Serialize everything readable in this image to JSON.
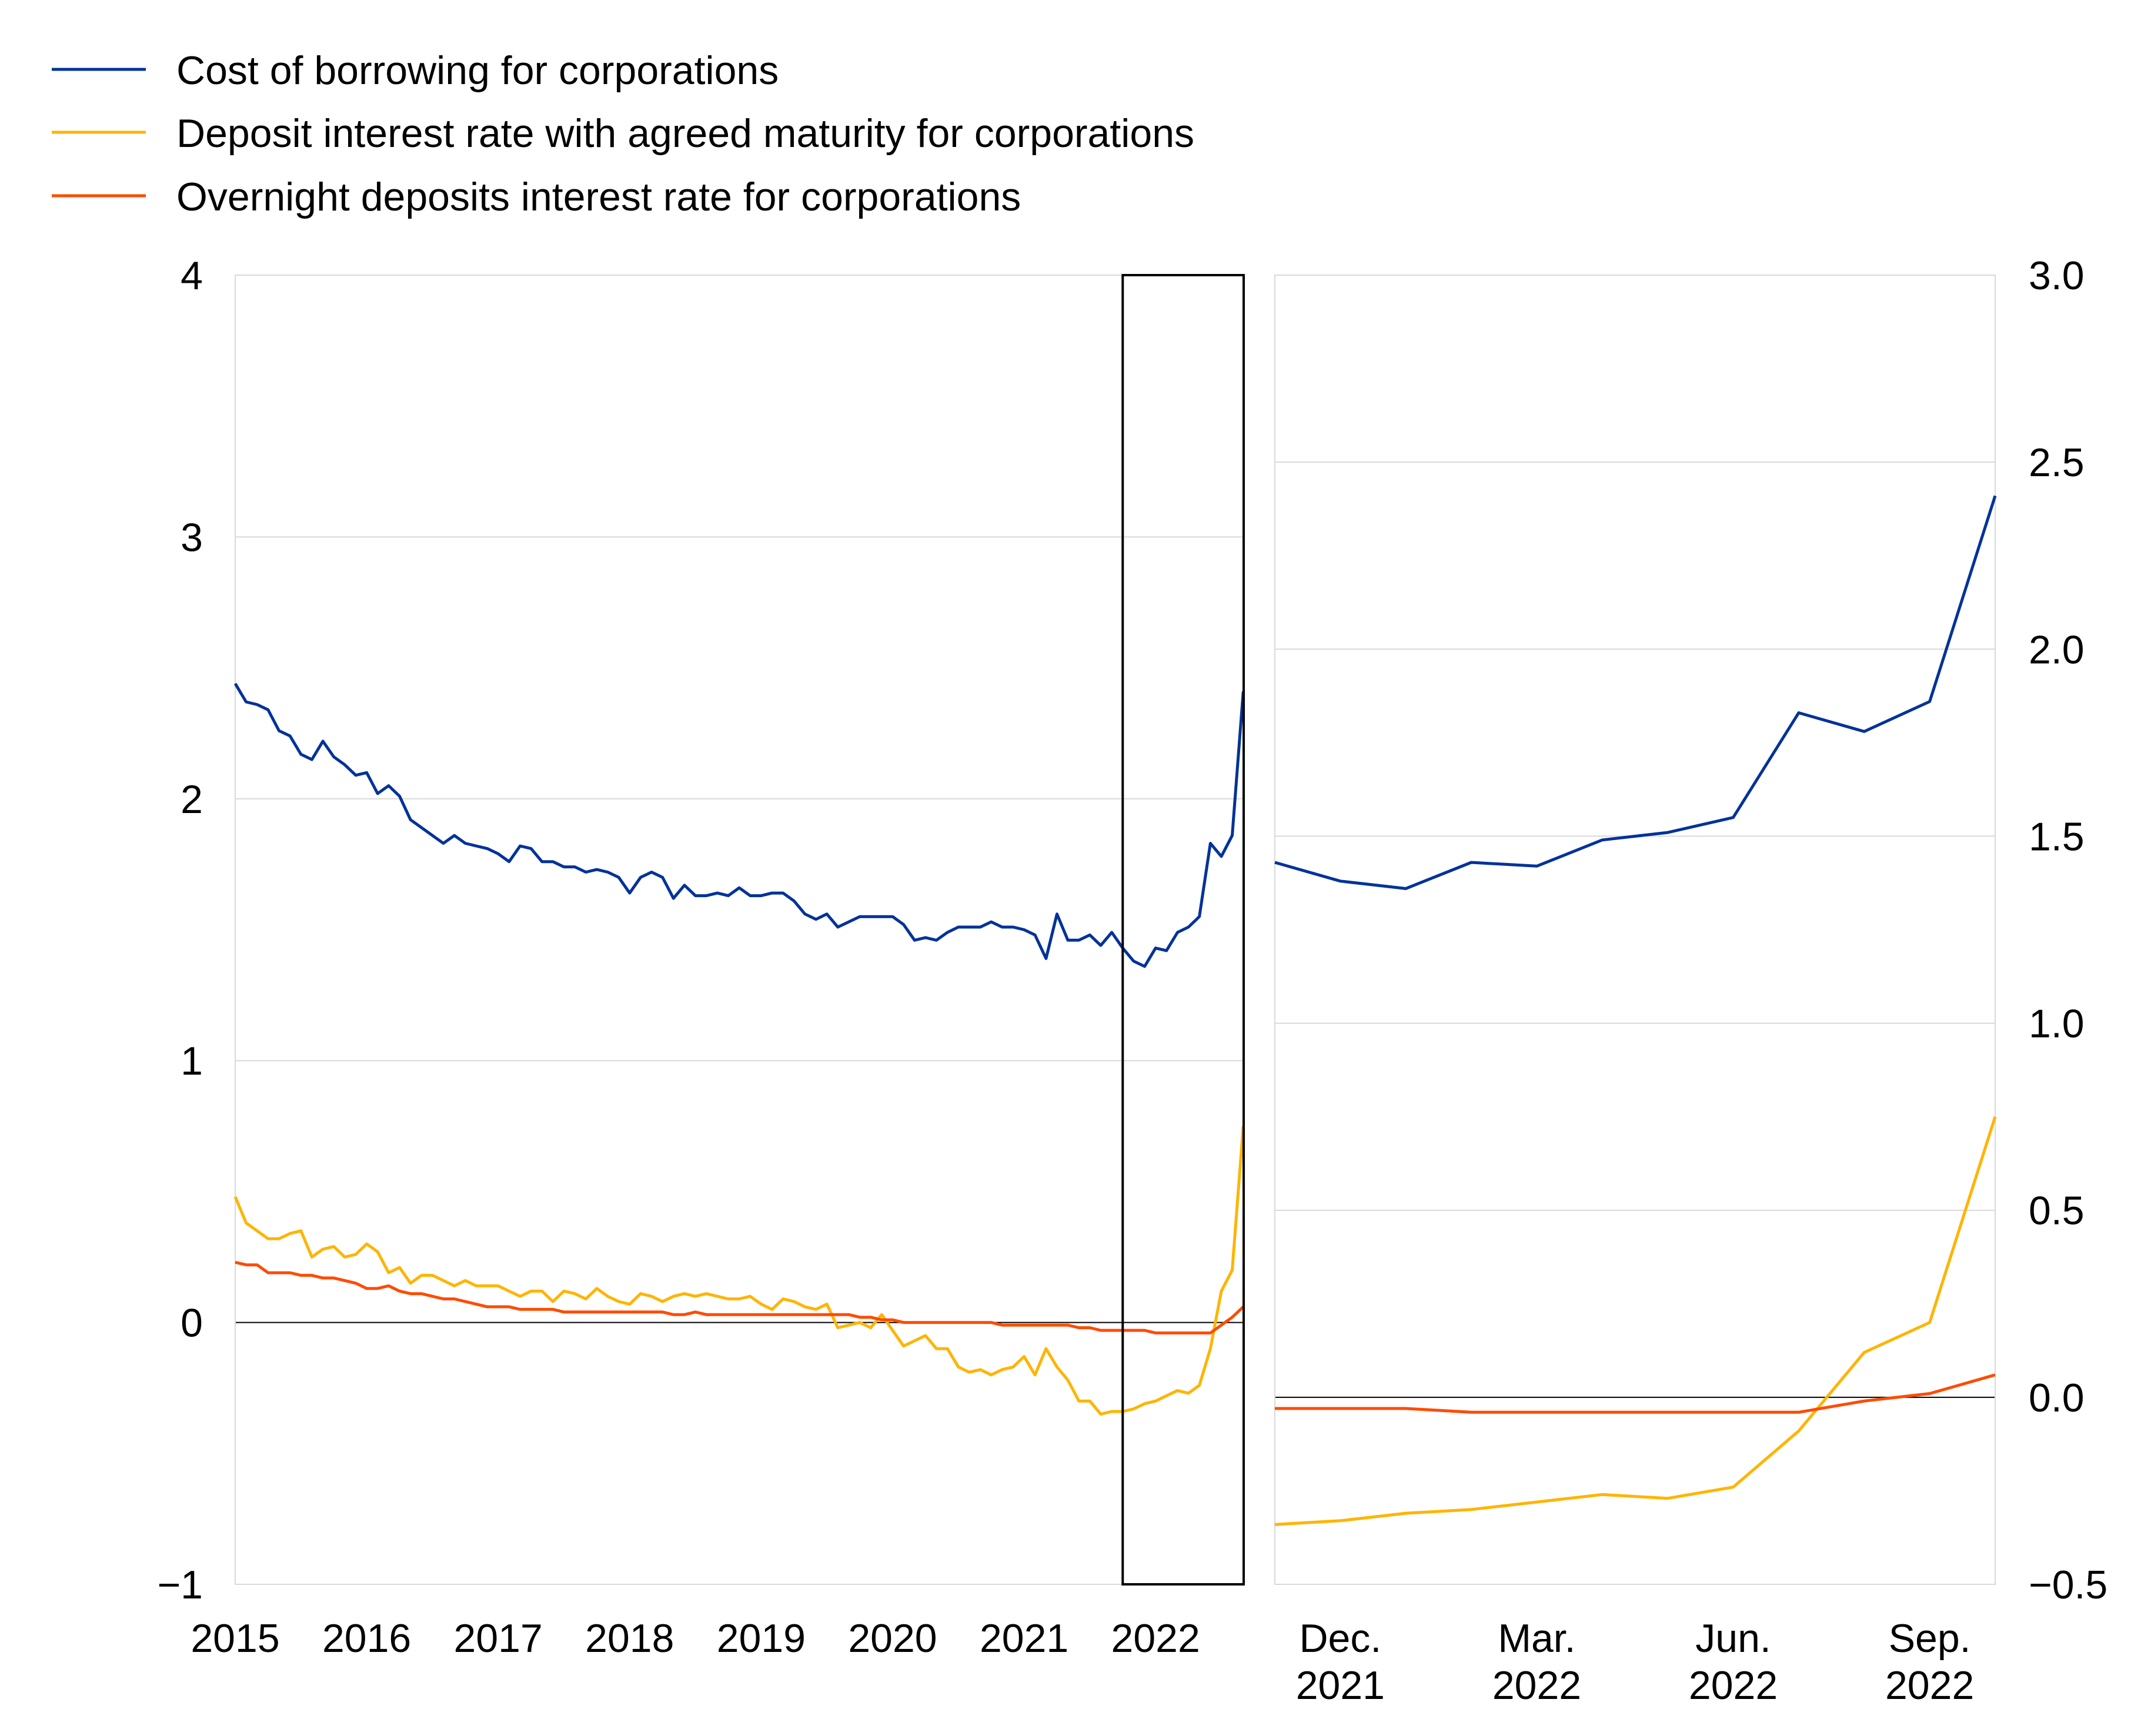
{
  "legend": [
    {
      "label": "Cost of borrowing for corporations",
      "color": "#003299"
    },
    {
      "label": "Deposit interest rate with agreed maturity for corporations",
      "color": "#ffb400"
    },
    {
      "label": "Overnight deposits interest rate for corporations",
      "color": "#ff4b00"
    }
  ],
  "chart_data": [
    {
      "type": "line",
      "panel": "left",
      "x_tick_labels": [
        "2015",
        "2016",
        "2017",
        "2018",
        "2019",
        "2020",
        "2021",
        "2022"
      ],
      "y_ticks": [
        "4",
        "3",
        "2",
        "1",
        "0",
        "−1"
      ],
      "ylim": [
        -1,
        4
      ],
      "xlim": [
        2015.0,
        2022.67
      ],
      "grid": true,
      "zero_line": true,
      "highlight_box_x": [
        2021.75,
        2022.67
      ],
      "series": [
        {
          "name": "Cost of borrowing for corporations",
          "color": "#003299",
          "x": [
            2015.0,
            2015.083,
            2015.167,
            2015.25,
            2015.333,
            2015.417,
            2015.5,
            2015.583,
            2015.667,
            2015.75,
            2015.833,
            2015.917,
            2016.0,
            2016.083,
            2016.167,
            2016.25,
            2016.333,
            2016.417,
            2016.5,
            2016.583,
            2016.667,
            2016.75,
            2016.833,
            2016.917,
            2017.0,
            2017.083,
            2017.167,
            2017.25,
            2017.333,
            2017.417,
            2017.5,
            2017.583,
            2017.667,
            2017.75,
            2017.833,
            2017.917,
            2018.0,
            2018.083,
            2018.167,
            2018.25,
            2018.333,
            2018.417,
            2018.5,
            2018.583,
            2018.667,
            2018.75,
            2018.833,
            2018.917,
            2019.0,
            2019.083,
            2019.167,
            2019.25,
            2019.333,
            2019.417,
            2019.5,
            2019.583,
            2019.667,
            2019.75,
            2019.833,
            2019.917,
            2020.0,
            2020.083,
            2020.167,
            2020.25,
            2020.333,
            2020.417,
            2020.5,
            2020.583,
            2020.667,
            2020.75,
            2020.833,
            2020.917,
            2021.0,
            2021.083,
            2021.167,
            2021.25,
            2021.333,
            2021.417,
            2021.5,
            2021.583,
            2021.667,
            2021.75,
            2021.833,
            2021.917,
            2022.0,
            2022.083,
            2022.167,
            2022.25,
            2022.333,
            2022.417,
            2022.5,
            2022.583,
            2022.667
          ],
          "y": [
            2.44,
            2.37,
            2.36,
            2.34,
            2.26,
            2.24,
            2.17,
            2.15,
            2.22,
            2.16,
            2.13,
            2.09,
            2.1,
            2.02,
            2.05,
            2.01,
            1.92,
            1.89,
            1.86,
            1.83,
            1.86,
            1.83,
            1.82,
            1.81,
            1.79,
            1.76,
            1.82,
            1.81,
            1.76,
            1.76,
            1.74,
            1.74,
            1.72,
            1.73,
            1.72,
            1.7,
            1.64,
            1.7,
            1.72,
            1.7,
            1.62,
            1.67,
            1.63,
            1.63,
            1.64,
            1.63,
            1.66,
            1.63,
            1.63,
            1.64,
            1.64,
            1.61,
            1.56,
            1.54,
            1.56,
            1.51,
            1.53,
            1.55,
            1.55,
            1.55,
            1.55,
            1.52,
            1.46,
            1.47,
            1.46,
            1.49,
            1.51,
            1.51,
            1.51,
            1.53,
            1.51,
            1.51,
            1.5,
            1.48,
            1.39,
            1.56,
            1.46,
            1.46,
            1.48,
            1.44,
            1.49,
            1.43,
            1.38,
            1.36,
            1.43,
            1.42,
            1.49,
            1.51,
            1.55,
            1.83,
            1.78,
            1.86,
            2.41
          ]
        },
        {
          "name": "Deposit interest rate with agreed maturity for corporations",
          "color": "#ffb400",
          "x": [
            2015.0,
            2015.083,
            2015.167,
            2015.25,
            2015.333,
            2015.417,
            2015.5,
            2015.583,
            2015.667,
            2015.75,
            2015.833,
            2015.917,
            2016.0,
            2016.083,
            2016.167,
            2016.25,
            2016.333,
            2016.417,
            2016.5,
            2016.583,
            2016.667,
            2016.75,
            2016.833,
            2016.917,
            2017.0,
            2017.083,
            2017.167,
            2017.25,
            2017.333,
            2017.417,
            2017.5,
            2017.583,
            2017.667,
            2017.75,
            2017.833,
            2017.917,
            2018.0,
            2018.083,
            2018.167,
            2018.25,
            2018.333,
            2018.417,
            2018.5,
            2018.583,
            2018.667,
            2018.75,
            2018.833,
            2018.917,
            2019.0,
            2019.083,
            2019.167,
            2019.25,
            2019.333,
            2019.417,
            2019.5,
            2019.583,
            2019.667,
            2019.75,
            2019.833,
            2019.917,
            2020.0,
            2020.083,
            2020.167,
            2020.25,
            2020.333,
            2020.417,
            2020.5,
            2020.583,
            2020.667,
            2020.75,
            2020.833,
            2020.917,
            2021.0,
            2021.083,
            2021.167,
            2021.25,
            2021.333,
            2021.417,
            2021.5,
            2021.583,
            2021.667,
            2021.75,
            2021.833,
            2021.917,
            2022.0,
            2022.083,
            2022.167,
            2022.25,
            2022.333,
            2022.417,
            2022.5,
            2022.583,
            2022.667
          ],
          "y": [
            0.48,
            0.38,
            0.35,
            0.32,
            0.32,
            0.34,
            0.35,
            0.25,
            0.28,
            0.29,
            0.25,
            0.26,
            0.3,
            0.27,
            0.19,
            0.21,
            0.15,
            0.18,
            0.18,
            0.16,
            0.14,
            0.16,
            0.14,
            0.14,
            0.14,
            0.12,
            0.1,
            0.12,
            0.12,
            0.08,
            0.12,
            0.11,
            0.09,
            0.13,
            0.1,
            0.08,
            0.07,
            0.11,
            0.1,
            0.08,
            0.1,
            0.11,
            0.1,
            0.11,
            0.1,
            0.09,
            0.09,
            0.1,
            0.07,
            0.05,
            0.09,
            0.08,
            0.06,
            0.05,
            0.07,
            -0.02,
            -0.01,
            0.0,
            -0.02,
            0.03,
            -0.03,
            -0.09,
            -0.07,
            -0.05,
            -0.1,
            -0.1,
            -0.17,
            -0.19,
            -0.18,
            -0.2,
            -0.18,
            -0.17,
            -0.13,
            -0.2,
            -0.1,
            -0.17,
            -0.22,
            -0.3,
            -0.3,
            -0.35,
            -0.34,
            -0.34,
            -0.33,
            -0.31,
            -0.3,
            -0.28,
            -0.26,
            -0.27,
            -0.24,
            -0.1,
            0.12,
            0.2,
            0.75
          ]
        },
        {
          "name": "Overnight deposits interest rate for corporations",
          "color": "#ff4b00",
          "x": [
            2015.0,
            2015.083,
            2015.167,
            2015.25,
            2015.333,
            2015.417,
            2015.5,
            2015.583,
            2015.667,
            2015.75,
            2015.833,
            2015.917,
            2016.0,
            2016.083,
            2016.167,
            2016.25,
            2016.333,
            2016.417,
            2016.5,
            2016.583,
            2016.667,
            2016.75,
            2016.833,
            2016.917,
            2017.0,
            2017.083,
            2017.167,
            2017.25,
            2017.333,
            2017.417,
            2017.5,
            2017.583,
            2017.667,
            2017.75,
            2017.833,
            2017.917,
            2018.0,
            2018.083,
            2018.167,
            2018.25,
            2018.333,
            2018.417,
            2018.5,
            2018.583,
            2018.667,
            2018.75,
            2018.833,
            2018.917,
            2019.0,
            2019.083,
            2019.167,
            2019.25,
            2019.333,
            2019.417,
            2019.5,
            2019.583,
            2019.667,
            2019.75,
            2019.833,
            2019.917,
            2020.0,
            2020.083,
            2020.167,
            2020.25,
            2020.333,
            2020.417,
            2020.5,
            2020.583,
            2020.667,
            2020.75,
            2020.833,
            2020.917,
            2021.0,
            2021.083,
            2021.167,
            2021.25,
            2021.333,
            2021.417,
            2021.5,
            2021.583,
            2021.667,
            2021.75,
            2021.833,
            2021.917,
            2022.0,
            2022.083,
            2022.167,
            2022.25,
            2022.333,
            2022.417,
            2022.5,
            2022.583,
            2022.667
          ],
          "y": [
            0.23,
            0.22,
            0.22,
            0.19,
            0.19,
            0.19,
            0.18,
            0.18,
            0.17,
            0.17,
            0.16,
            0.15,
            0.13,
            0.13,
            0.14,
            0.12,
            0.11,
            0.11,
            0.1,
            0.09,
            0.09,
            0.08,
            0.07,
            0.06,
            0.06,
            0.06,
            0.05,
            0.05,
            0.05,
            0.05,
            0.04,
            0.04,
            0.04,
            0.04,
            0.04,
            0.04,
            0.04,
            0.04,
            0.04,
            0.04,
            0.03,
            0.03,
            0.04,
            0.03,
            0.03,
            0.03,
            0.03,
            0.03,
            0.03,
            0.03,
            0.03,
            0.03,
            0.03,
            0.03,
            0.03,
            0.03,
            0.03,
            0.02,
            0.02,
            0.01,
            0.01,
            0.0,
            0.0,
            0.0,
            0.0,
            0.0,
            0.0,
            0.0,
            0.0,
            0.0,
            -0.01,
            -0.01,
            -0.01,
            -0.01,
            -0.01,
            -0.01,
            -0.01,
            -0.02,
            -0.02,
            -0.03,
            -0.03,
            -0.03,
            -0.03,
            -0.03,
            -0.04,
            -0.04,
            -0.04,
            -0.04,
            -0.04,
            -0.04,
            -0.01,
            0.02,
            0.06
          ]
        }
      ]
    },
    {
      "type": "line",
      "panel": "right",
      "x_tick_labels": [
        {
          "line1": "Dec.",
          "line2": "2021"
        },
        {
          "line1": "Mar.",
          "line2": "2022"
        },
        {
          "line1": "Jun.",
          "line2": "2022"
        },
        {
          "line1": "Sep.",
          "line2": "2022"
        }
      ],
      "y_ticks": [
        "3.0",
        "2.5",
        "2.0",
        "1.5",
        "1.0",
        "0.5",
        "0.0",
        "−0.5"
      ],
      "ylim": [
        -0.5,
        3.0
      ],
      "x_index_range": [
        0,
        11
      ],
      "x_tick_index": [
        1,
        4,
        7,
        10
      ],
      "grid": true,
      "zero_line": true,
      "series": [
        {
          "name": "Cost of borrowing for corporations",
          "color": "#003299",
          "y": [
            1.43,
            1.38,
            1.36,
            1.43,
            1.42,
            1.49,
            1.51,
            1.55,
            1.83,
            1.78,
            1.86,
            2.41
          ]
        },
        {
          "name": "Deposit interest rate with agreed maturity for corporations",
          "color": "#ffb400",
          "y": [
            -0.34,
            -0.33,
            -0.31,
            -0.3,
            -0.28,
            -0.26,
            -0.27,
            -0.24,
            -0.09,
            0.12,
            0.2,
            0.75
          ]
        },
        {
          "name": "Overnight deposits interest rate for corporations",
          "color": "#ff4b00",
          "y": [
            -0.03,
            -0.03,
            -0.03,
            -0.04,
            -0.04,
            -0.04,
            -0.04,
            -0.04,
            -0.04,
            -0.01,
            0.01,
            0.06
          ]
        }
      ]
    }
  ]
}
